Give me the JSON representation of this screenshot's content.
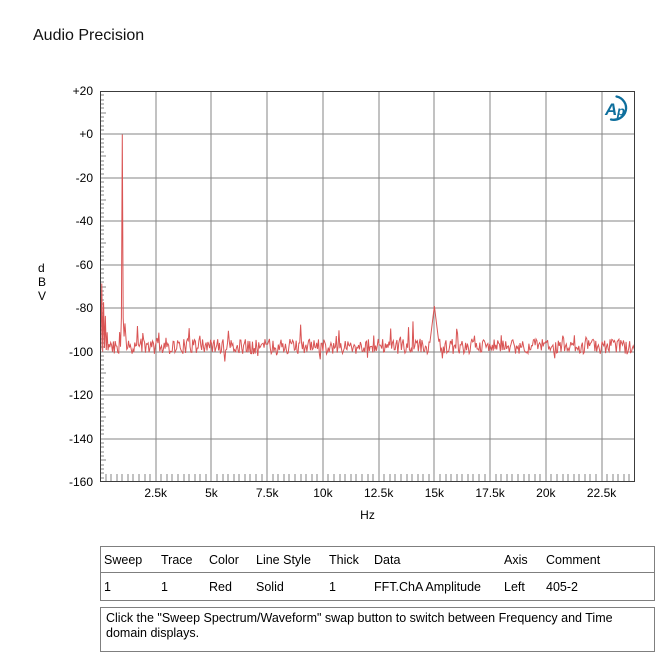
{
  "header": {
    "title": "Audio Precision"
  },
  "logo": {
    "text_a": "A",
    "text_p": "p",
    "color": "#0e6f9d"
  },
  "axis_labels": {
    "y_letters": [
      "d",
      "B",
      "V"
    ],
    "x_unit": "Hz"
  },
  "chart_data": {
    "type": "line",
    "title": "Audio Precision",
    "xlabel": "Hz",
    "ylabel": "dBV",
    "x_range_hz": [
      0,
      24000
    ],
    "y_range_dbv": [
      -160,
      20
    ],
    "grid": true,
    "legend_position": "none",
    "x_ticks": [
      {
        "hz": 2500,
        "label": "2.5k"
      },
      {
        "hz": 5000,
        "label": "5k"
      },
      {
        "hz": 7500,
        "label": "7.5k"
      },
      {
        "hz": 10000,
        "label": "10k"
      },
      {
        "hz": 12500,
        "label": "12.5k"
      },
      {
        "hz": 15000,
        "label": "15k"
      },
      {
        "hz": 17500,
        "label": "17.5k"
      },
      {
        "hz": 20000,
        "label": "20k"
      },
      {
        "hz": 22500,
        "label": "22.5k"
      }
    ],
    "y_ticks": [
      {
        "dbv": 20,
        "label": "+20"
      },
      {
        "dbv": 0,
        "label": "+0"
      },
      {
        "dbv": -20,
        "label": "-20"
      },
      {
        "dbv": -40,
        "label": "-40"
      },
      {
        "dbv": -60,
        "label": "-60"
      },
      {
        "dbv": -80,
        "label": "-80"
      },
      {
        "dbv": -100,
        "label": "-100"
      },
      {
        "dbv": -120,
        "label": "-120"
      },
      {
        "dbv": -140,
        "label": "-140"
      },
      {
        "dbv": -160,
        "label": "-160"
      }
    ],
    "x_minor_step_hz": 250,
    "y_minor_step_db": 2,
    "colors": {
      "trace": "#d95454",
      "grid": "#858585",
      "frame": "#3c3c3c"
    },
    "series": [
      {
        "name": "FFT.ChA Amplitude",
        "color_name": "Red",
        "samples": 600,
        "seed": 11,
        "noise_floor_dbv": -97.5,
        "noise_jitter_db": 3.5,
        "lf_noise": {
          "f_end_hz": 480,
          "peak_dbv": -52,
          "desc": "dense low-frequency noise 0-500 Hz up to -52 dBV"
        },
        "peaks": [
          {
            "f_hz": 1000,
            "level_dbv": 0,
            "width_hz": 45,
            "rolloff_db": 95,
            "desc": "1 kHz fundamental at 0 dBV"
          },
          {
            "f_hz": 1120,
            "level_dbv": -87,
            "width_hz": 80,
            "rolloff_db": 12,
            "desc": "skirt beside fundamental"
          },
          {
            "f_hz": 9000,
            "level_dbv": -88,
            "width_hz": 60,
            "rolloff_db": 12,
            "desc": "small spur near 9 kHz"
          },
          {
            "f_hz": 15000,
            "level_dbv": -79,
            "width_hz": 120,
            "rolloff_db": 10,
            "desc": "bump near 15 kHz at -79 dBV"
          }
        ]
      }
    ]
  },
  "legend_table": {
    "headers": [
      "Sweep",
      "Trace",
      "Color",
      "Line Style",
      "Thick",
      "Data",
      "Axis",
      "Comment"
    ],
    "rows": [
      [
        "1",
        "1",
        "Red",
        "Solid",
        "1",
        "FFT.ChA Amplitude",
        "Left",
        "405-2"
      ]
    ]
  },
  "note": {
    "text": "Click the \"Sweep Spectrum/Waveform\" swap button to switch between Frequency and Time domain displays."
  }
}
